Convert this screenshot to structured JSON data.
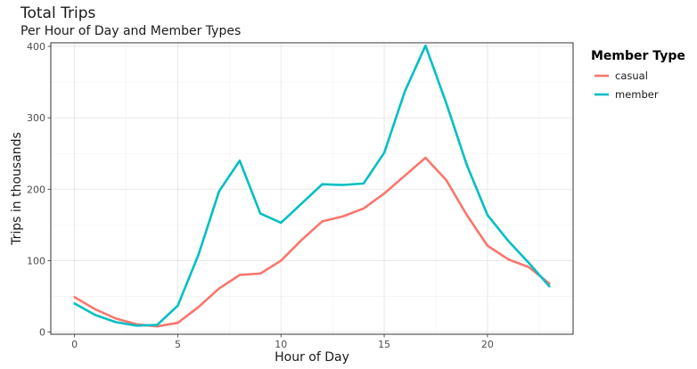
{
  "chart_data": {
    "type": "line",
    "title": "Total Trips",
    "subtitle": "Per Hour of Day and Member Types",
    "xlabel": "Hour of Day",
    "ylabel": "Trips in thousands",
    "xlim": [
      -1.15,
      24.15
    ],
    "ylim": [
      -3,
      405
    ],
    "x_ticks": [
      0,
      5,
      10,
      15,
      20
    ],
    "y_ticks": [
      0,
      100,
      200,
      300,
      400
    ],
    "grid": true,
    "legend": {
      "title": "Member Type",
      "position": "right"
    },
    "x": [
      0,
      1,
      2,
      3,
      4,
      5,
      6,
      7,
      8,
      9,
      10,
      11,
      12,
      13,
      14,
      15,
      16,
      17,
      18,
      19,
      20,
      21,
      22,
      23
    ],
    "series": [
      {
        "name": "casual",
        "color": "#F8766D",
        "values": [
          49,
          32,
          19,
          11,
          8,
          13,
          35,
          61,
          80,
          82,
          100,
          129,
          155,
          162,
          173,
          194,
          219,
          244,
          213,
          164,
          121,
          102,
          91,
          68
        ]
      },
      {
        "name": "member",
        "color": "#00BFC4",
        "values": [
          40,
          24,
          14,
          9,
          10,
          37,
          108,
          197,
          240,
          166,
          153,
          180,
          207,
          206,
          208,
          251,
          337,
          401,
          321,
          234,
          164,
          128,
          97,
          64
        ]
      }
    ]
  }
}
